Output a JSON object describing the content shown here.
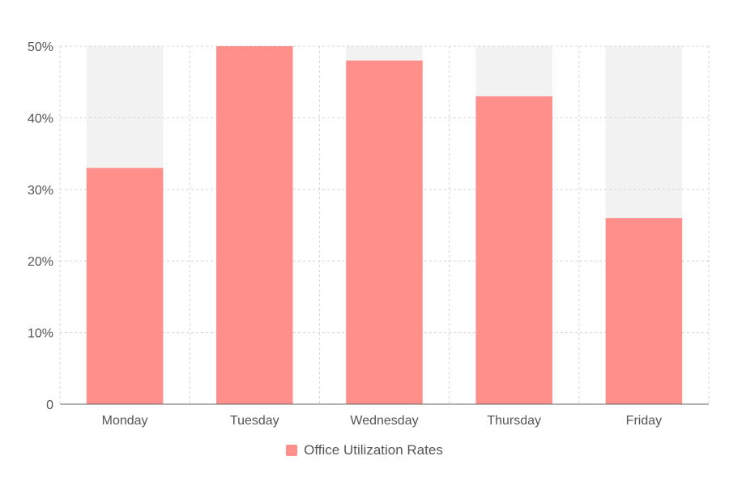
{
  "chart_data": {
    "type": "bar",
    "categories": [
      "Monday",
      "Tuesday",
      "Wednesday",
      "Thursday",
      "Friday"
    ],
    "series": [
      {
        "name": "Office Utilization Rates",
        "values": [
          33,
          50,
          48,
          43,
          26
        ],
        "color": "#ff8f8a"
      }
    ],
    "ylim": [
      0,
      50
    ],
    "yticks": [
      0,
      10,
      20,
      30,
      40,
      50
    ],
    "ytick_labels": [
      "0",
      "10%",
      "20%",
      "30%",
      "40%",
      "50%"
    ],
    "background_bar_color": "#f2f2f2",
    "grid": true,
    "grid_style": "dashed",
    "legend_position": "bottom-center"
  }
}
